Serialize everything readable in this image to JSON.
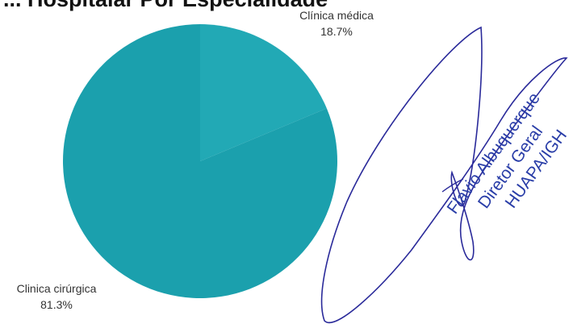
{
  "chart_data": {
    "type": "pie",
    "title": "... Hospitalar Por Especialidade",
    "slices": [
      {
        "label": "Clínica médica",
        "value": 18.7,
        "value_label": "18.7%",
        "color": "#22a9b5"
      },
      {
        "label": "Clinica cirúrgica",
        "value": 81.3,
        "value_label": "81.3%",
        "color": "#1ba0ad"
      }
    ],
    "legend": "none"
  },
  "stamp": {
    "name": "Flavio Albuquerque",
    "role": "Diretor Geral",
    "unit": "HUAPA/IGH",
    "color": "#2a3ea8"
  }
}
